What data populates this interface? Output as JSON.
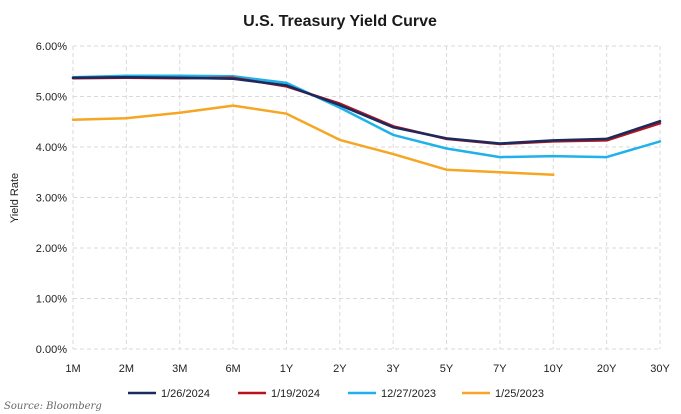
{
  "chart_data": {
    "type": "line",
    "title": "U.S. Treasury Yield Curve",
    "xlabel": "",
    "ylabel": "Yield Rate",
    "categories": [
      "1M",
      "2M",
      "3M",
      "6M",
      "1Y",
      "2Y",
      "3Y",
      "5Y",
      "7Y",
      "10Y",
      "20Y",
      "30Y"
    ],
    "ylim": [
      0,
      6
    ],
    "yticks": [
      "0.00%",
      "1.00%",
      "2.00%",
      "3.00%",
      "4.00%",
      "5.00%",
      "6.00%"
    ],
    "grid": true,
    "legend_position": "bottom",
    "series": [
      {
        "name": "1/26/2024",
        "color": "#1b2a5c",
        "values": [
          5.37,
          5.38,
          5.37,
          5.35,
          5.22,
          4.83,
          4.39,
          4.17,
          4.07,
          4.13,
          4.16,
          4.51
        ]
      },
      {
        "name": "1/19/2024",
        "color": "#b7121f",
        "values": [
          5.36,
          5.37,
          5.36,
          5.37,
          5.2,
          4.86,
          4.41,
          4.16,
          4.06,
          4.11,
          4.13,
          4.47
        ]
      },
      {
        "name": "12/27/2023",
        "color": "#1fb2e8",
        "values": [
          5.38,
          5.41,
          5.41,
          5.4,
          5.27,
          4.78,
          4.24,
          3.97,
          3.8,
          3.82,
          3.8,
          4.11
        ]
      },
      {
        "name": "1/25/2023",
        "color": "#f5a623",
        "values": [
          4.54,
          4.57,
          4.68,
          4.82,
          4.66,
          4.14,
          3.86,
          3.55,
          3.5,
          3.45,
          null,
          null
        ]
      }
    ]
  },
  "source": "Source: Bloomberg"
}
